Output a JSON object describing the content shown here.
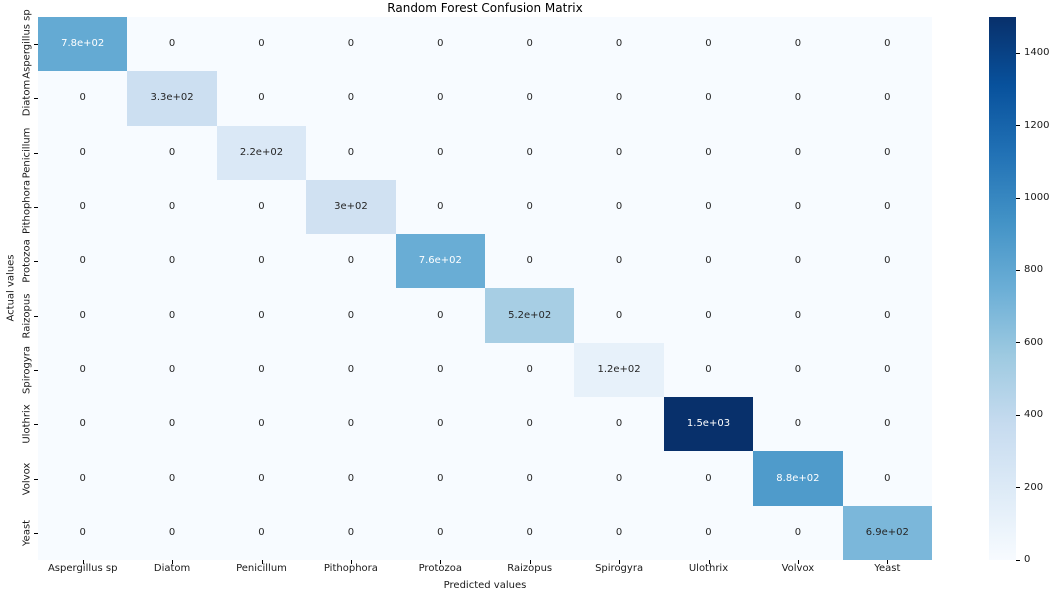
{
  "figure": {
    "background": "#ffffff"
  },
  "chart_data": {
    "type": "heatmap",
    "title": "Random Forest Confusion Matrix",
    "xlabel": "Predicted values",
    "ylabel": "Actual values",
    "x_categories": [
      "Aspergillus sp",
      "Diatom",
      "Penicillum",
      "Pithophora",
      "Protozoa",
      "Raizopus",
      "Spirogyra",
      "Ulothrix",
      "Volvox",
      "Yeast"
    ],
    "y_categories": [
      "Aspergillus sp",
      "Diatom",
      "Penicillum",
      "Pithophora",
      "Protozoa",
      "Raizopus",
      "Spirogyra",
      "Ulothrix",
      "Volvox",
      "Yeast"
    ],
    "values": [
      [
        780,
        0,
        0,
        0,
        0,
        0,
        0,
        0,
        0,
        0
      ],
      [
        0,
        330,
        0,
        0,
        0,
        0,
        0,
        0,
        0,
        0
      ],
      [
        0,
        0,
        220,
        0,
        0,
        0,
        0,
        0,
        0,
        0
      ],
      [
        0,
        0,
        0,
        300,
        0,
        0,
        0,
        0,
        0,
        0
      ],
      [
        0,
        0,
        0,
        0,
        760,
        0,
        0,
        0,
        0,
        0
      ],
      [
        0,
        0,
        0,
        0,
        0,
        520,
        0,
        0,
        0,
        0
      ],
      [
        0,
        0,
        0,
        0,
        0,
        0,
        120,
        0,
        0,
        0
      ],
      [
        0,
        0,
        0,
        0,
        0,
        0,
        0,
        1500,
        0,
        0
      ],
      [
        0,
        0,
        0,
        0,
        0,
        0,
        0,
        0,
        880,
        0
      ],
      [
        0,
        0,
        0,
        0,
        0,
        0,
        0,
        0,
        0,
        690
      ]
    ],
    "annotations": [
      [
        "7.8e+02",
        "0",
        "0",
        "0",
        "0",
        "0",
        "0",
        "0",
        "0",
        "0"
      ],
      [
        "0",
        "3.3e+02",
        "0",
        "0",
        "0",
        "0",
        "0",
        "0",
        "0",
        "0"
      ],
      [
        "0",
        "0",
        "2.2e+02",
        "0",
        "0",
        "0",
        "0",
        "0",
        "0",
        "0"
      ],
      [
        "0",
        "0",
        "0",
        "3e+02",
        "0",
        "0",
        "0",
        "0",
        "0",
        "0"
      ],
      [
        "0",
        "0",
        "0",
        "0",
        "7.6e+02",
        "0",
        "0",
        "0",
        "0",
        "0"
      ],
      [
        "0",
        "0",
        "0",
        "0",
        "0",
        "5.2e+02",
        "0",
        "0",
        "0",
        "0"
      ],
      [
        "0",
        "0",
        "0",
        "0",
        "0",
        "0",
        "1.2e+02",
        "0",
        "0",
        "0"
      ],
      [
        "0",
        "0",
        "0",
        "0",
        "0",
        "0",
        "0",
        "1.5e+03",
        "0",
        "0"
      ],
      [
        "0",
        "0",
        "0",
        "0",
        "0",
        "0",
        "0",
        "0",
        "8.8e+02",
        "0"
      ],
      [
        "0",
        "0",
        "0",
        "0",
        "0",
        "0",
        "0",
        "0",
        "0",
        "6.9e+02"
      ]
    ],
    "colormap": "Blues",
    "vmin": 0,
    "vmax": 1500,
    "colorbar_ticks": [
      0,
      200,
      400,
      600,
      800,
      1000,
      1200,
      1400
    ],
    "colorbar_position": "right",
    "grid": false
  },
  "colors": {
    "cmap_stops": [
      "#f7fbff",
      "#deebf7",
      "#c6dbef",
      "#9ecae1",
      "#6baed6",
      "#4292c6",
      "#2171b5",
      "#08519c",
      "#08306b"
    ],
    "annot_dark": "#262626",
    "annot_light": "#ffffff",
    "tick_text": "#1a1a1a"
  }
}
